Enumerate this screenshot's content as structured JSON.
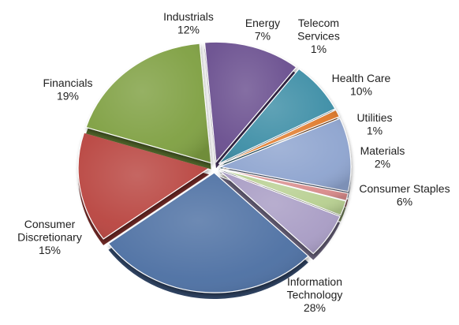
{
  "chart_data": {
    "type": "pie",
    "slices": [
      {
        "name": "Industrials",
        "value": 12,
        "value_label": "12%",
        "color": "#6b4f8f",
        "label_lines": [
          "Industrials",
          "12%"
        ]
      },
      {
        "name": "Energy",
        "value": 7,
        "value_label": "7%",
        "color": "#3d8ea6",
        "label_lines": [
          "Energy",
          "7%"
        ]
      },
      {
        "name": "Telecom Services",
        "value": 1,
        "value_label": "1%",
        "color": "#e07a2b",
        "label_lines": [
          "Telecom",
          "Services",
          "1%"
        ]
      },
      {
        "name": "Health Care",
        "value": 10,
        "value_label": "10%",
        "color": "#8ea4cf",
        "label_lines": [
          "Health Care",
          "10%"
        ]
      },
      {
        "name": "Utilities",
        "value": 1,
        "value_label": "1%",
        "color": "#d88a8a",
        "label_lines": [
          "Utilities",
          "1%"
        ]
      },
      {
        "name": "Materials",
        "value": 2,
        "value_label": "2%",
        "color": "#b7cf90",
        "label_lines": [
          "Materials",
          "2%"
        ]
      },
      {
        "name": "Consumer Staples",
        "value": 6,
        "value_label": "6%",
        "color": "#a89cc4",
        "label_lines": [
          "Consumer Staples",
          "6%"
        ]
      },
      {
        "name": "Information Technology",
        "value": 28,
        "value_label": "28%",
        "color": "#4e6fa3",
        "label_lines": [
          "Information",
          "Technology",
          "28%"
        ]
      },
      {
        "name": "Consumer Discretionary",
        "value": 15,
        "value_label": "15%",
        "color": "#b9443f",
        "label_lines": [
          "Consumer",
          "Discretionary",
          "15%"
        ]
      },
      {
        "name": "Financials",
        "value": 19,
        "value_label": "19%",
        "color": "#7fa043",
        "label_lines": [
          "Financials",
          "19%"
        ]
      }
    ],
    "start_angle_deg": 95,
    "direction": "clockwise",
    "exploded": true,
    "legend": "none"
  }
}
